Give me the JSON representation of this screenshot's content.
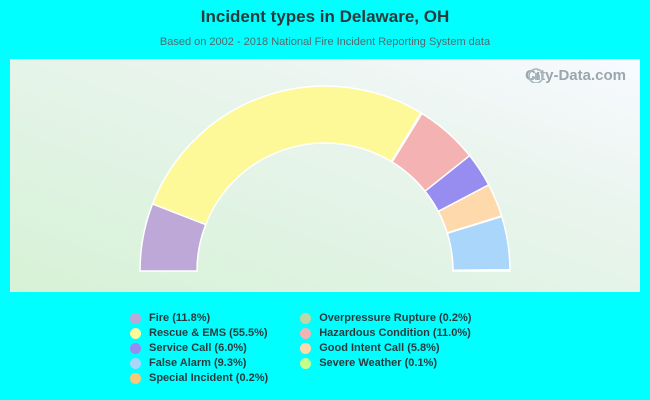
{
  "header": {
    "title": "Incident types in Delaware, OH",
    "subtitle": "Based on 2002 - 2018 National Fire Incident Reporting System data"
  },
  "watermark": {
    "text": "City-Data.com",
    "icon": "bar-chart-icon"
  },
  "chart_data": {
    "type": "pie",
    "variant": "half-donut",
    "title": "Incident types in Delaware, OH",
    "subtitle": "Based on 2002 - 2018 National Fire Incident Reporting System data",
    "legend_position": "bottom",
    "slices": [
      {
        "name": "Fire",
        "label": "Fire (11.8%)",
        "value": 11.8,
        "color": "#bea8d8"
      },
      {
        "name": "Rescue & EMS",
        "label": "Rescue & EMS (55.5%)",
        "value": 55.5,
        "color": "#fef998"
      },
      {
        "name": "Overpressure Rupture",
        "label": "Overpressure Rupture (0.2%)",
        "value": 0.2,
        "color": "#bcd8a8"
      },
      {
        "name": "Hazardous Condition",
        "label": "Hazardous Condition (11.0%)",
        "value": 11.0,
        "color": "#f5b2b2"
      },
      {
        "name": "Service Call",
        "label": "Service Call (6.0%)",
        "value": 6.0,
        "color": "#978df0"
      },
      {
        "name": "Good Intent Call",
        "label": "Good Intent Call (5.8%)",
        "value": 5.8,
        "color": "#fdd9ab"
      },
      {
        "name": "Severe Weather",
        "label": "Severe Weather (0.1%)",
        "value": 0.1,
        "color": "#c8ff88"
      },
      {
        "name": "False Alarm",
        "label": "False Alarm (9.3%)",
        "value": 9.3,
        "color": "#aad6fc"
      },
      {
        "name": "Special Incident",
        "label": "Special Incident (0.2%)",
        "value": 0.2,
        "color": "#f5c87a"
      }
    ],
    "legend_columns": [
      [
        {
          "label": "Fire (11.8%)",
          "color": "#bea8d8"
        },
        {
          "label": "Rescue & EMS (55.5%)",
          "color": "#fef998"
        },
        {
          "label": "Service Call (6.0%)",
          "color": "#978df0"
        },
        {
          "label": "False Alarm (9.3%)",
          "color": "#aad6fc"
        },
        {
          "label": "Special Incident (0.2%)",
          "color": "#f5c87a"
        }
      ],
      [
        {
          "label": "Overpressure Rupture (0.2%)",
          "color": "#bcd8a8"
        },
        {
          "label": "Hazardous Condition (11.0%)",
          "color": "#f5b2b2"
        },
        {
          "label": "Good Intent Call (5.8%)",
          "color": "#fdd9ab"
        },
        {
          "label": "Severe Weather (0.1%)",
          "color": "#c8ff88"
        }
      ]
    ]
  }
}
